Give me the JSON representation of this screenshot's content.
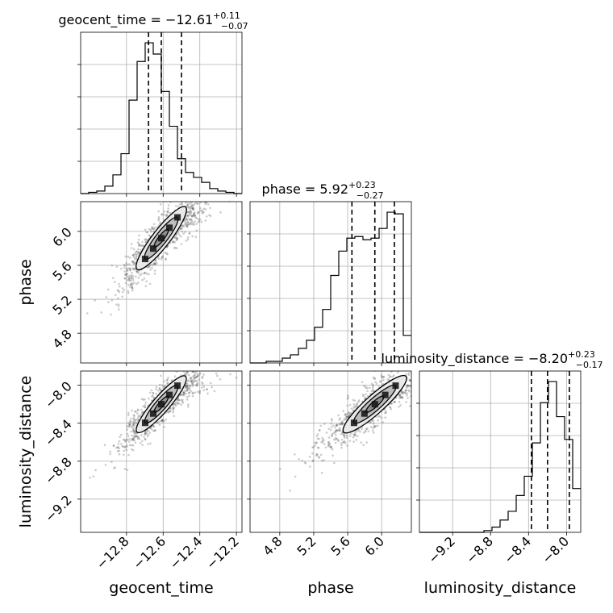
{
  "chart_data": {
    "type": "corner",
    "parameters": [
      {
        "name": "geocent_time",
        "median": -12.61,
        "plus": "+0.11",
        "minus": "−0.07",
        "q16": -12.68,
        "q84": -12.5,
        "range": [
          -13.05,
          -12.17
        ],
        "ticks": [
          -12.8,
          -12.6,
          -12.4,
          -12.2
        ],
        "tick_labels": [
          "−12.8",
          "−12.6",
          "−12.4",
          "−12.2"
        ]
      },
      {
        "name": "phase",
        "median": 5.92,
        "plus": "+0.23",
        "minus": "−0.27",
        "q16": 5.65,
        "q84": 6.15,
        "range": [
          4.45,
          6.35
        ],
        "ticks": [
          4.8,
          5.2,
          5.6,
          6.0
        ],
        "tick_labels": [
          "4.8",
          "5.2",
          "5.6",
          "6.0"
        ]
      },
      {
        "name": "luminosity_distance",
        "median": -8.2,
        "plus": "+0.23",
        "minus": "−0.17",
        "q16": -8.37,
        "q84": -7.97,
        "range": [
          -9.55,
          -7.85
        ],
        "ticks": [
          -9.2,
          -8.8,
          -8.4,
          -8.0
        ],
        "tick_labels": [
          "−9.2",
          "−8.8",
          "−8.4",
          "−8.0"
        ]
      }
    ],
    "titles": [
      {
        "main": "geocent_time = −12.61",
        "sup": "+0.11",
        "sub": "−0.07"
      },
      {
        "main": "phase = 5.92",
        "sup": "+0.23",
        "sub": "−0.27"
      },
      {
        "main": "luminosity_distance = −8.20",
        "sup": "+0.23",
        "sub": "−0.17"
      }
    ],
    "axis_labels": {
      "x": [
        "geocent_time",
        "phase",
        "luminosity_distance"
      ],
      "y": [
        "phase",
        "luminosity_distance"
      ]
    },
    "histograms": [
      {
        "param": 0,
        "edges_start": -13.05,
        "bin_width": 0.044,
        "counts": [
          0,
          1,
          2,
          6,
          15,
          32,
          75,
          106,
          121,
          112,
          82,
          54,
          28,
          17,
          13,
          9,
          4,
          2,
          1,
          0
        ]
      },
      {
        "param": 1,
        "edges_start": 4.45,
        "bin_width": 0.095,
        "counts": [
          0,
          0,
          1,
          1,
          3,
          5,
          9,
          14,
          22,
          33,
          54,
          69,
          77,
          78,
          76,
          77,
          83,
          93,
          92,
          17
        ]
      },
      {
        "param": 2,
        "edges_start": -9.55,
        "bin_width": 0.085,
        "counts": [
          0,
          0,
          0,
          0,
          0,
          0,
          0,
          0,
          1,
          3,
          7,
          12,
          21,
          32,
          51,
          74,
          86,
          66,
          53,
          25
        ]
      }
    ],
    "scatter_pairs": [
      {
        "x_param": 0,
        "y_param": 1
      },
      {
        "x_param": 0,
        "y_param": 2
      },
      {
        "x_param": 1,
        "y_param": 2
      }
    ],
    "grid": true,
    "colors": {
      "hist": "#000000",
      "quantile": "#000000",
      "points": "#555555",
      "contour_fill": [
        "#e9e9e9",
        "#bdbdbd",
        "#8f8f8f"
      ]
    }
  }
}
